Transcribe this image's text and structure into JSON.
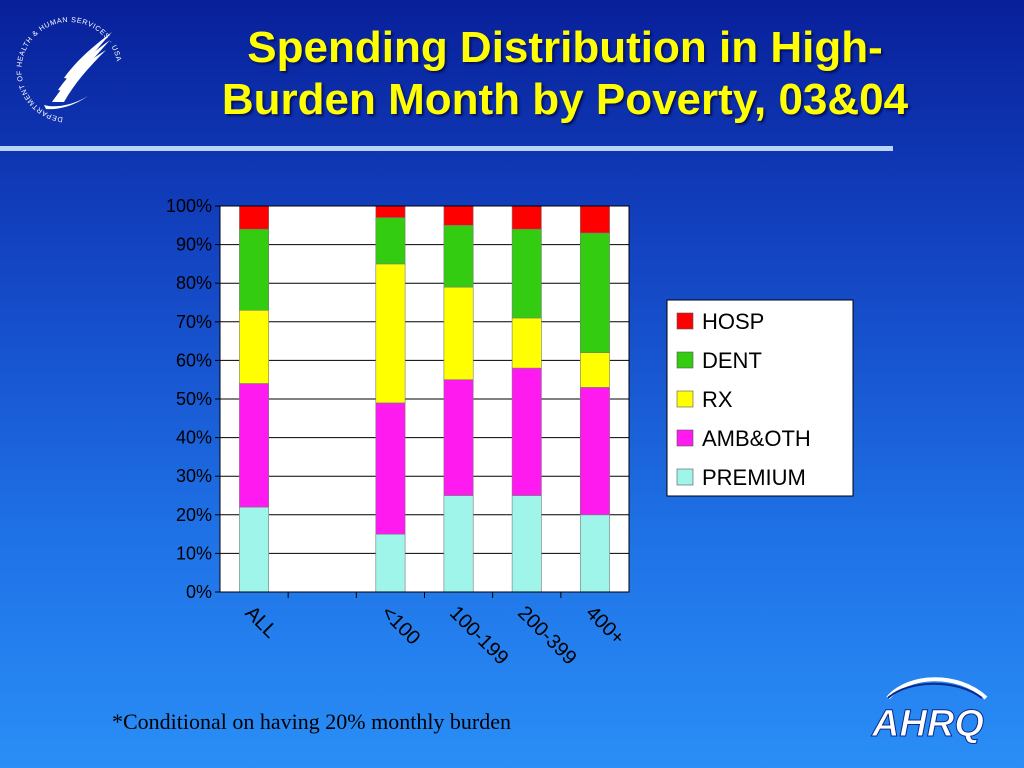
{
  "slide": {
    "title_line1": "Spending Distribution in High-",
    "title_line2": "Burden Month by Poverty, 03&04",
    "footnote": "*Conditional on having 20% monthly burden",
    "seal_text": "DEPARTMENT OF HEALTH & HUMAN SERVICES · USA",
    "logo_text": "AHRQ"
  },
  "chart_data": {
    "type": "bar",
    "stacked": true,
    "categories": [
      "ALL",
      "",
      "<100",
      "100-199",
      "200-399",
      "400+"
    ],
    "series": [
      {
        "name": "PREMIUM",
        "color": "#9ff5ea",
        "values": [
          22,
          null,
          15,
          25,
          25,
          20
        ]
      },
      {
        "name": "AMB&OTH",
        "color": "#ff1af0",
        "values": [
          32,
          null,
          34,
          30,
          33,
          33
        ]
      },
      {
        "name": "RX",
        "color": "#ffff00",
        "values": [
          19,
          null,
          36,
          24,
          13,
          9
        ]
      },
      {
        "name": "DENT",
        "color": "#33cc11",
        "values": [
          21,
          null,
          12,
          16,
          23,
          31
        ]
      },
      {
        "name": "HOSP",
        "color": "#ff0000",
        "values": [
          6,
          null,
          3,
          5,
          6,
          7
        ]
      }
    ],
    "legend_order": [
      "HOSP",
      "DENT",
      "RX",
      "AMB&OTH",
      "PREMIUM"
    ],
    "yticks": [
      "0%",
      "10%",
      "20%",
      "30%",
      "40%",
      "50%",
      "60%",
      "70%",
      "80%",
      "90%",
      "100%"
    ],
    "ylim": [
      0,
      100
    ],
    "grid": true,
    "legend_position": "right",
    "xlabel": "",
    "ylabel": ""
  }
}
